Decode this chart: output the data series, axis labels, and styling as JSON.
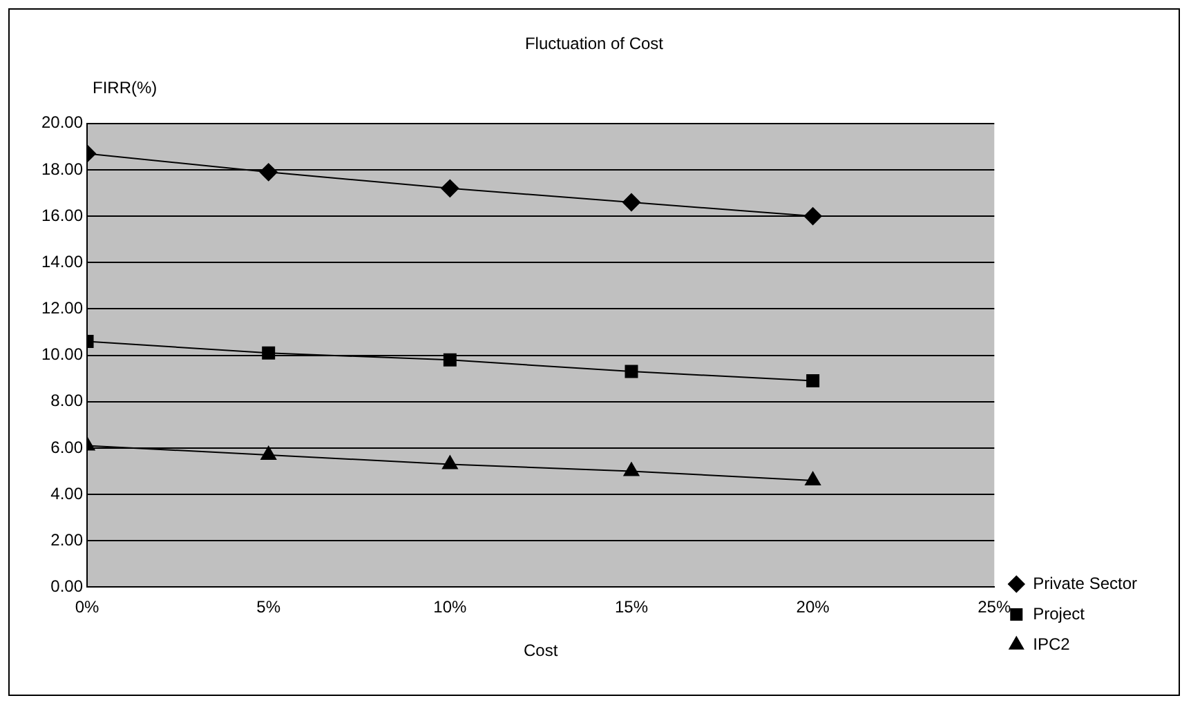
{
  "chart_data": {
    "type": "line",
    "title": "Fluctuation of Cost",
    "xlabel": "Cost",
    "ylabel": "FIRR(%)",
    "x": [
      0,
      5,
      10,
      15,
      20
    ],
    "series": [
      {
        "name": "Private Sector",
        "color": "#000000",
        "marker": "diamond",
        "values": [
          18.7,
          17.9,
          17.2,
          16.6,
          16.0
        ]
      },
      {
        "name": "Project",
        "color": "#000000",
        "marker": "square",
        "values": [
          10.6,
          10.1,
          9.8,
          9.3,
          8.9
        ]
      },
      {
        "name": "IPC2",
        "color": "#000000",
        "marker": "triangle",
        "values": [
          6.1,
          5.7,
          5.3,
          5.0,
          4.6
        ]
      }
    ],
    "xlim": [
      0,
      25
    ],
    "xticks": [
      {
        "value": 0,
        "label": "0%"
      },
      {
        "value": 5,
        "label": "5%"
      },
      {
        "value": 10,
        "label": "10%"
      },
      {
        "value": 15,
        "label": "15%"
      },
      {
        "value": 20,
        "label": "20%"
      },
      {
        "value": 25,
        "label": "25%"
      }
    ],
    "ylim": [
      0,
      20
    ],
    "yticks": [
      {
        "value": 0,
        "label": "0.00"
      },
      {
        "value": 2,
        "label": "2.00"
      },
      {
        "value": 4,
        "label": "4.00"
      },
      {
        "value": 6,
        "label": "6.00"
      },
      {
        "value": 8,
        "label": "8.00"
      },
      {
        "value": 10,
        "label": "10.00"
      },
      {
        "value": 12,
        "label": "12.00"
      },
      {
        "value": 14,
        "label": "14.00"
      },
      {
        "value": 16,
        "label": "16.00"
      },
      {
        "value": 18,
        "label": "18.00"
      },
      {
        "value": 20,
        "label": "20.00"
      }
    ],
    "grid": "y",
    "legend": "right",
    "line_style": "solid"
  }
}
